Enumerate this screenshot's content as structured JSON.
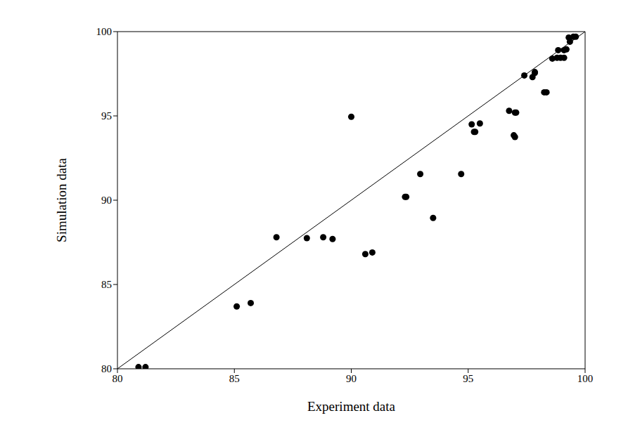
{
  "chart_data": {
    "type": "scatter",
    "x_label": "Experiment data",
    "y_label": "Simulation data",
    "xlim": [
      80,
      100
    ],
    "ylim": [
      80,
      100
    ],
    "xticks": [
      80,
      85,
      90,
      95,
      100
    ],
    "yticks": [
      80,
      85,
      90,
      95,
      100
    ],
    "color": "#000000",
    "marker": "circle",
    "grid": false,
    "x": [
      80.9,
      81.2,
      85.1,
      85.7,
      86.8,
      88.1,
      88.8,
      89.2,
      90.0,
      90.6,
      90.9,
      92.3,
      92.35,
      92.95,
      93.5,
      94.7,
      95.15,
      95.25,
      95.3,
      95.5,
      96.75,
      96.95,
      97.0,
      97.0,
      97.05,
      97.4,
      97.75,
      97.85,
      97.85,
      98.25,
      98.35,
      98.6,
      98.8,
      98.85,
      98.95,
      99.1,
      99.1,
      99.2,
      99.3,
      99.35,
      99.5,
      99.6
    ],
    "values": [
      80.1,
      80.1,
      83.7,
      83.9,
      87.8,
      87.75,
      87.8,
      87.7,
      94.95,
      86.8,
      86.9,
      90.2,
      90.2,
      91.55,
      88.95,
      91.55,
      94.5,
      94.05,
      94.05,
      94.55,
      95.3,
      93.85,
      93.75,
      95.2,
      95.2,
      97.4,
      97.3,
      97.55,
      97.6,
      96.4,
      96.4,
      98.4,
      98.45,
      98.9,
      98.45,
      98.45,
      98.9,
      98.95,
      99.65,
      99.4,
      99.7,
      99.7
    ]
  }
}
